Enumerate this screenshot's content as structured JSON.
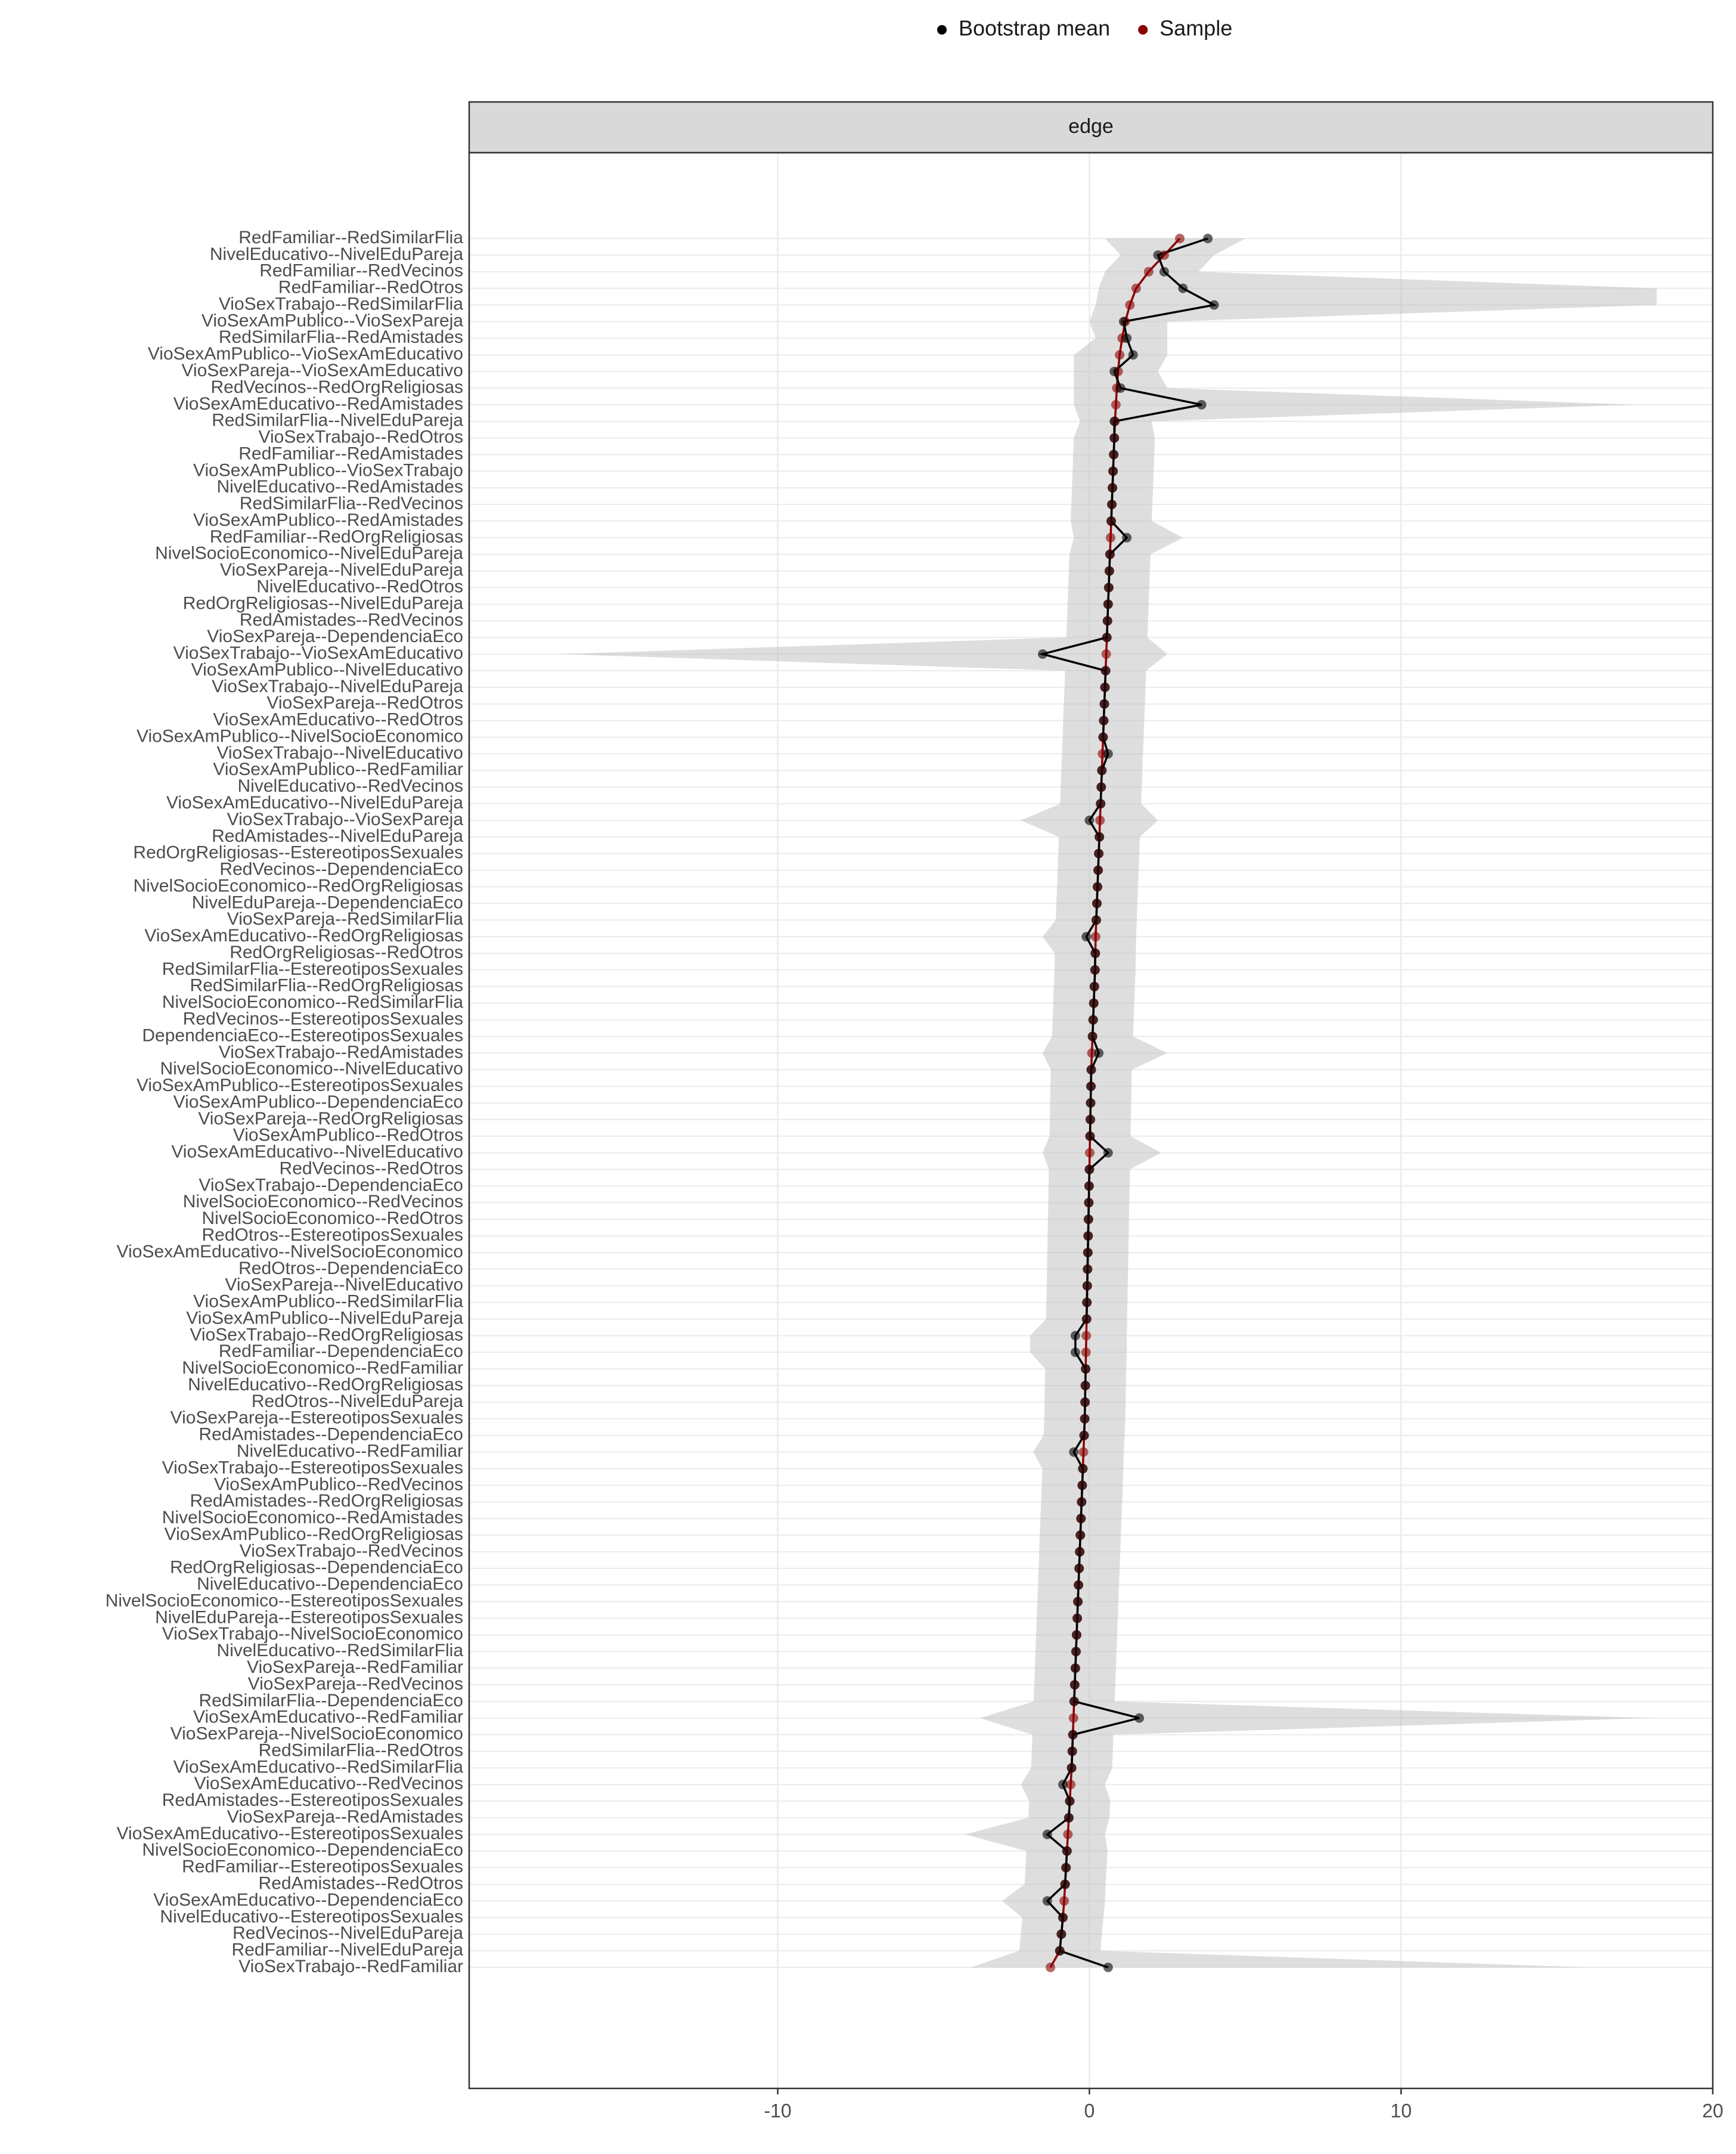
{
  "chart_data": {
    "type": "dot-ci",
    "strip_label": "edge",
    "legend_position": "top",
    "grid": true,
    "xlim": [
      -19.9,
      20
    ],
    "xticks": [
      -10,
      0,
      10,
      20
    ],
    "ribbon_color": "#bebebe",
    "categories": [
      "RedFamiliar--RedSimilarFlia",
      "NivelEducativo--NivelEduPareja",
      "RedFamiliar--RedVecinos",
      "RedFamiliar--RedOtros",
      "VioSexTrabajo--RedSimilarFlia",
      "VioSexAmPublico--VioSexPareja",
      "RedSimilarFlia--RedAmistades",
      "VioSexAmPublico--VioSexAmEducativo",
      "VioSexPareja--VioSexAmEducativo",
      "RedVecinos--RedOrgReligiosas",
      "VioSexAmEducativo--RedAmistades",
      "RedSimilarFlia--NivelEduPareja",
      "VioSexTrabajo--RedOtros",
      "RedFamiliar--RedAmistades",
      "VioSexAmPublico--VioSexTrabajo",
      "NivelEducativo--RedAmistades",
      "RedSimilarFlia--RedVecinos",
      "VioSexAmPublico--RedAmistades",
      "RedFamiliar--RedOrgReligiosas",
      "NivelSocioEconomico--NivelEduPareja",
      "VioSexPareja--NivelEduPareja",
      "NivelEducativo--RedOtros",
      "RedOrgReligiosas--NivelEduPareja",
      "RedAmistades--RedVecinos",
      "VioSexPareja--DependenciaEco",
      "VioSexTrabajo--VioSexAmEducativo",
      "VioSexAmPublico--NivelEducativo",
      "VioSexTrabajo--NivelEduPareja",
      "VioSexPareja--RedOtros",
      "VioSexAmEducativo--RedOtros",
      "VioSexAmPublico--NivelSocioEconomico",
      "VioSexTrabajo--NivelEducativo",
      "VioSexAmPublico--RedFamiliar",
      "NivelEducativo--RedVecinos",
      "VioSexAmEducativo--NivelEduPareja",
      "VioSexTrabajo--VioSexPareja",
      "RedAmistades--NivelEduPareja",
      "RedOrgReligiosas--EstereotiposSexuales",
      "RedVecinos--DependenciaEco",
      "NivelSocioEconomico--RedOrgReligiosas",
      "NivelEduPareja--DependenciaEco",
      "VioSexPareja--RedSimilarFlia",
      "VioSexAmEducativo--RedOrgReligiosas",
      "RedOrgReligiosas--RedOtros",
      "RedSimilarFlia--EstereotiposSexuales",
      "RedSimilarFlia--RedOrgReligiosas",
      "NivelSocioEconomico--RedSimilarFlia",
      "RedVecinos--EstereotiposSexuales",
      "DependenciaEco--EstereotiposSexuales",
      "VioSexTrabajo--RedAmistades",
      "NivelSocioEconomico--NivelEducativo",
      "VioSexAmPublico--EstereotiposSexuales",
      "VioSexAmPublico--DependenciaEco",
      "VioSexPareja--RedOrgReligiosas",
      "VioSexAmPublico--RedOtros",
      "VioSexAmEducativo--NivelEducativo",
      "RedVecinos--RedOtros",
      "VioSexTrabajo--DependenciaEco",
      "NivelSocioEconomico--RedVecinos",
      "NivelSocioEconomico--RedOtros",
      "RedOtros--EstereotiposSexuales",
      "VioSexAmEducativo--NivelSocioEconomico",
      "RedOtros--DependenciaEco",
      "VioSexPareja--NivelEducativo",
      "VioSexAmPublico--RedSimilarFlia",
      "VioSexAmPublico--NivelEduPareja",
      "VioSexTrabajo--RedOrgReligiosas",
      "RedFamiliar--DependenciaEco",
      "NivelSocioEconomico--RedFamiliar",
      "NivelEducativo--RedOrgReligiosas",
      "RedOtros--NivelEduPareja",
      "VioSexPareja--EstereotiposSexuales",
      "RedAmistades--DependenciaEco",
      "NivelEducativo--RedFamiliar",
      "VioSexTrabajo--EstereotiposSexuales",
      "VioSexAmPublico--RedVecinos",
      "RedAmistades--RedOrgReligiosas",
      "NivelSocioEconomico--RedAmistades",
      "VioSexAmPublico--RedOrgReligiosas",
      "VioSexTrabajo--RedVecinos",
      "RedOrgReligiosas--DependenciaEco",
      "NivelEducativo--DependenciaEco",
      "NivelSocioEconomico--EstereotiposSexuales",
      "NivelEduPareja--EstereotiposSexuales",
      "VioSexTrabajo--NivelSocioEconomico",
      "NivelEducativo--RedSimilarFlia",
      "VioSexPareja--RedFamiliar",
      "VioSexPareja--RedVecinos",
      "RedSimilarFlia--DependenciaEco",
      "VioSexAmEducativo--RedFamiliar",
      "VioSexPareja--NivelSocioEconomico",
      "RedSimilarFlia--RedOtros",
      "VioSexAmEducativo--RedSimilarFlia",
      "VioSexAmEducativo--RedVecinos",
      "RedAmistades--EstereotiposSexuales",
      "VioSexPareja--RedAmistades",
      "VioSexAmEducativo--EstereotiposSexuales",
      "NivelSocioEconomico--DependenciaEco",
      "RedFamiliar--EstereotiposSexuales",
      "RedAmistades--RedOtros",
      "VioSexAmEducativo--DependenciaEco",
      "NivelEducativo--EstereotiposSexuales",
      "RedVecinos--NivelEduPareja",
      "RedFamiliar--NivelEduPareja",
      "VioSexTrabajo--RedFamiliar"
    ],
    "series": [
      {
        "name": "Bootstrap mean",
        "color": "#000000",
        "values": [
          3.8,
          2.2,
          2.4,
          3.0,
          4.0,
          1.1,
          1.2,
          1.4,
          0.8,
          1.0,
          3.6,
          0.8,
          0.8,
          0.78,
          0.76,
          0.74,
          0.72,
          0.7,
          1.2,
          0.66,
          0.64,
          0.62,
          0.6,
          0.58,
          0.56,
          -1.5,
          0.52,
          0.5,
          0.48,
          0.46,
          0.44,
          0.6,
          0.4,
          0.38,
          0.36,
          0.0,
          0.32,
          0.3,
          0.28,
          0.26,
          0.24,
          0.22,
          -0.1,
          0.19,
          0.18,
          0.16,
          0.14,
          0.12,
          0.1,
          0.3,
          0.06,
          0.05,
          0.04,
          0.03,
          0.02,
          0.6,
          0,
          -0.01,
          -0.02,
          -0.03,
          -0.04,
          -0.05,
          -0.06,
          -0.07,
          -0.08,
          -0.09,
          -0.45,
          -0.45,
          -0.12,
          -0.13,
          -0.14,
          -0.15,
          -0.17,
          -0.5,
          -0.21,
          -0.23,
          -0.25,
          -0.27,
          -0.29,
          -0.31,
          -0.33,
          -0.35,
          -0.37,
          -0.39,
          -0.41,
          -0.43,
          -0.45,
          -0.47,
          -0.49,
          1.6,
          -0.53,
          -0.55,
          -0.57,
          -0.85,
          -0.63,
          -0.66,
          -1.35,
          -0.72,
          -0.75,
          -0.78,
          -1.35,
          -0.85,
          -0.9,
          -0.95,
          0.6
        ]
      },
      {
        "name": "Sample",
        "color": "#8b0000",
        "values": [
          2.9,
          2.4,
          1.9,
          1.5,
          1.3,
          1.15,
          1.05,
          0.97,
          0.92,
          0.88,
          0.85,
          0.82,
          0.8,
          0.78,
          0.76,
          0.74,
          0.72,
          0.7,
          0.68,
          0.66,
          0.64,
          0.62,
          0.6,
          0.58,
          0.56,
          0.54,
          0.52,
          0.5,
          0.48,
          0.46,
          0.44,
          0.42,
          0.4,
          0.38,
          0.36,
          0.34,
          0.32,
          0.3,
          0.28,
          0.26,
          0.24,
          0.22,
          0.2,
          0.19,
          0.18,
          0.16,
          0.14,
          0.12,
          0.1,
          0.08,
          0.06,
          0.05,
          0.04,
          0.03,
          0.02,
          0.01,
          0,
          -0.01,
          -0.02,
          -0.03,
          -0.04,
          -0.05,
          -0.06,
          -0.07,
          -0.08,
          -0.09,
          -0.1,
          -0.11,
          -0.12,
          -0.13,
          -0.14,
          -0.15,
          -0.17,
          -0.19,
          -0.21,
          -0.23,
          -0.25,
          -0.27,
          -0.29,
          -0.31,
          -0.33,
          -0.35,
          -0.37,
          -0.39,
          -0.41,
          -0.43,
          -0.45,
          -0.47,
          -0.49,
          -0.51,
          -0.53,
          -0.55,
          -0.57,
          -0.6,
          -0.63,
          -0.66,
          -0.69,
          -0.72,
          -0.75,
          -0.78,
          -0.81,
          -0.85,
          -0.9,
          -0.95,
          -1.25
        ]
      }
    ],
    "interval": {
      "lower": [
        0.5,
        1.0,
        0.5,
        0.3,
        0.2,
        0,
        0.2,
        -0.5,
        -0.5,
        -0.5,
        -0.5,
        -0.3,
        -0.5,
        -0.52,
        -0.54,
        -0.56,
        -0.58,
        -0.6,
        -0.5,
        -0.64,
        -0.66,
        -0.68,
        -0.7,
        -0.72,
        -0.74,
        -17,
        -0.78,
        -0.8,
        -0.82,
        -0.84,
        -0.86,
        -0.88,
        -0.9,
        -0.92,
        -0.94,
        -2.2,
        -0.98,
        -1.0,
        -1.02,
        -1.04,
        -1.06,
        -1.08,
        -1.5,
        -1.11,
        -1.12,
        -1.14,
        -1.16,
        -1.18,
        -1.2,
        -1.5,
        -1.24,
        -1.25,
        -1.26,
        -1.27,
        -1.28,
        -1.5,
        -1.3,
        -1.31,
        -1.32,
        -1.33,
        -1.34,
        -1.35,
        -1.36,
        -1.37,
        -1.38,
        -1.39,
        -1.9,
        -1.9,
        -1.42,
        -1.43,
        -1.44,
        -1.45,
        -1.47,
        -1.8,
        -1.51,
        -1.53,
        -1.55,
        -1.57,
        -1.59,
        -1.61,
        -1.63,
        -1.65,
        -1.67,
        -1.69,
        -1.71,
        -1.73,
        -1.75,
        -1.77,
        -1.79,
        -3.5,
        -1.83,
        -1.85,
        -1.87,
        -2.2,
        -1.93,
        -1.96,
        -4.0,
        -2.02,
        -2.05,
        -2.08,
        -2.8,
        -2.15,
        -2.2,
        -2.25,
        -3.8
      ],
      "upper": [
        5.0,
        4.0,
        3.5,
        18.2,
        18.2,
        2.5,
        2.5,
        2.5,
        2.2,
        2.5,
        17.5,
        2.0,
        2.1,
        2.08,
        2.06,
        2.04,
        2.02,
        2.0,
        3.0,
        1.96,
        1.94,
        1.92,
        1.9,
        1.88,
        1.86,
        2.5,
        1.82,
        1.8,
        1.78,
        1.76,
        1.74,
        1.72,
        1.7,
        1.68,
        1.66,
        2.2,
        1.62,
        1.6,
        1.58,
        1.56,
        1.54,
        1.52,
        1.5,
        1.49,
        1.48,
        1.46,
        1.44,
        1.42,
        1.4,
        2.5,
        1.36,
        1.35,
        1.34,
        1.33,
        1.32,
        2.3,
        1.3,
        1.29,
        1.28,
        1.27,
        1.26,
        1.25,
        1.24,
        1.23,
        1.22,
        1.21,
        1.2,
        1.2,
        1.18,
        1.17,
        1.16,
        1.15,
        1.13,
        1.1,
        1.09,
        1.07,
        1.05,
        1.03,
        1.01,
        0.99,
        0.97,
        0.95,
        0.93,
        0.91,
        0.89,
        0.87,
        0.85,
        0.83,
        0.81,
        18.0,
        0.77,
        0.75,
        0.73,
        0.5,
        0.67,
        0.64,
        0.5,
        0.58,
        0.55,
        0.52,
        0.5,
        0.45,
        0.4,
        0.35,
        16.0
      ]
    }
  }
}
